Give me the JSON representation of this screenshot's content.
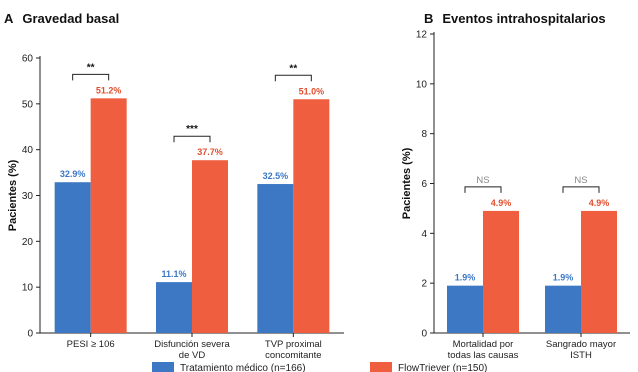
{
  "colors": {
    "medical": "#3d78c4",
    "flowtriever": "#ee5e3f",
    "medical_label": "#3d78c4",
    "flowtriever_label": "#e0502f",
    "axis": "#222222",
    "bracket": "#222222",
    "ns": "#888888"
  },
  "legend": {
    "placement": "bottom-center",
    "items": [
      {
        "key": "medical",
        "label": "Tratamiento médico (n=166)"
      },
      {
        "key": "flowtriever",
        "label": "FlowTriever (n=150)"
      }
    ]
  },
  "chart_data": [
    {
      "type": "bar",
      "panel_letter": "A",
      "title": "Gravedad basal",
      "ylabel": "Pacientes (%)",
      "ylim": [
        0,
        60
      ],
      "yticks": [
        0,
        10,
        20,
        30,
        40,
        50,
        60
      ],
      "categories": [
        [
          "PESI ≥ 106"
        ],
        [
          "Disfunción severa",
          "de VD"
        ],
        [
          "TVP proximal",
          "concomitante"
        ]
      ],
      "series": [
        {
          "name": "Tratamiento médico (n=166)",
          "key": "medical",
          "values": [
            32.9,
            11.1,
            32.5
          ],
          "labels": [
            "32.9%",
            "11.1%",
            "32.5%"
          ]
        },
        {
          "name": "FlowTriever (n=150)",
          "key": "flowtriever",
          "values": [
            51.2,
            37.7,
            51.0
          ],
          "labels": [
            "51.2%",
            "37.7%",
            "51.0%"
          ]
        }
      ],
      "significance": [
        "**",
        "***",
        "**"
      ],
      "grid": false
    },
    {
      "type": "bar",
      "panel_letter": "B",
      "title": "Eventos intrahospitalarios",
      "ylabel": "Pacientes (%)",
      "ylim": [
        0,
        12
      ],
      "yticks": [
        0,
        2,
        4,
        6,
        8,
        10,
        12
      ],
      "categories": [
        [
          "Mortalidad por",
          "todas las causas"
        ],
        [
          "Sangrado mayor",
          "ISTH"
        ]
      ],
      "series": [
        {
          "name": "Tratamiento médico (n=166)",
          "key": "medical",
          "values": [
            1.9,
            1.9
          ],
          "labels": [
            "1.9%",
            "1.9%"
          ]
        },
        {
          "name": "FlowTriever (n=150)",
          "key": "flowtriever",
          "values": [
            4.9,
            4.9
          ],
          "labels": [
            "4.9%",
            "4.9%"
          ]
        }
      ],
      "significance": [
        "NS",
        "NS"
      ],
      "grid": false
    }
  ]
}
